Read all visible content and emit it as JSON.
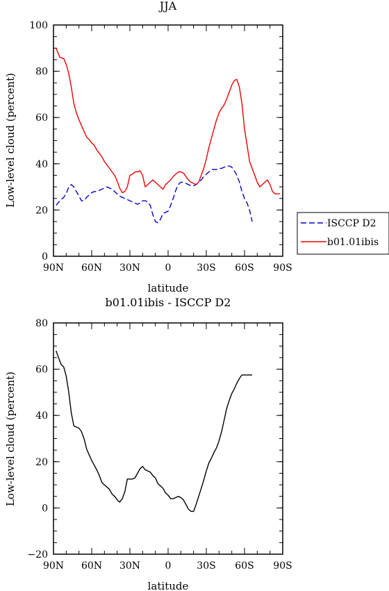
{
  "chart_data": [
    {
      "type": "line",
      "title": "JJA",
      "xlabel": "latitude",
      "ylabel": "Low-level cloud (percent)",
      "xlim": [
        90,
        -90
      ],
      "ylim": [
        0,
        100
      ],
      "xticks": [
        "90N",
        "60N",
        "30N",
        "0",
        "30S",
        "60S",
        "90S"
      ],
      "yticks": [
        "0",
        "20",
        "40",
        "60",
        "80",
        "100"
      ],
      "legend_position": "right",
      "series": [
        {
          "name": "ISCCP D2",
          "color": "#0000cc",
          "dash": true,
          "x": [
            88,
            85,
            82,
            80,
            78,
            76,
            74,
            72,
            70,
            68,
            66,
            64,
            62,
            60,
            58,
            56,
            54,
            52,
            50,
            48,
            46,
            44,
            42,
            40,
            38,
            36,
            34,
            32,
            30,
            28,
            26,
            24,
            22,
            20,
            18,
            16,
            14,
            12,
            10,
            8,
            6,
            4,
            2,
            0,
            -2,
            -4,
            -6,
            -8,
            -10,
            -12,
            -14,
            -16,
            -18,
            -20,
            -22,
            -24,
            -26,
            -28,
            -30,
            -32,
            -34,
            -36,
            -38,
            -40,
            -42,
            -44,
            -46,
            -48,
            -50,
            -52,
            -54,
            -56,
            -58,
            -60,
            -62,
            -64,
            -66
          ],
          "y": [
            22,
            24,
            25.5,
            27,
            30,
            31,
            30,
            28,
            26,
            24,
            24,
            25.5,
            26.5,
            27.5,
            28,
            28,
            28.5,
            29,
            29.5,
            30,
            29.5,
            29,
            28,
            27,
            26,
            25.5,
            25,
            24.5,
            24,
            23.5,
            23,
            22.5,
            23,
            24,
            24,
            23.5,
            22,
            18,
            15,
            14.5,
            16,
            18.5,
            19,
            19.5,
            22,
            25,
            28.5,
            31,
            32,
            32,
            31.5,
            31,
            30.5,
            30.5,
            31,
            32,
            33,
            34.5,
            35.5,
            36.5,
            37.5,
            37.5,
            37.5,
            38,
            38,
            38.5,
            39,
            39,
            38.5,
            37,
            35,
            32,
            28,
            25,
            23,
            20,
            15
          ]
        },
        {
          "name": "b01.01ibis",
          "color": "#ee0000",
          "dash": false,
          "x": [
            88,
            85,
            82,
            80,
            78,
            76,
            74,
            72,
            70,
            68,
            66,
            64,
            62,
            60,
            58,
            56,
            54,
            52,
            50,
            48,
            46,
            44,
            42,
            40,
            38,
            36,
            34,
            32,
            30,
            28,
            26,
            24,
            22,
            20,
            18,
            16,
            14,
            12,
            10,
            8,
            6,
            4,
            2,
            0,
            -2,
            -4,
            -6,
            -8,
            -10,
            -12,
            -14,
            -16,
            -18,
            -20,
            -22,
            -24,
            -26,
            -28,
            -30,
            -32,
            -34,
            -36,
            -38,
            -40,
            -42,
            -44,
            -46,
            -48,
            -50,
            -52,
            -54,
            -56,
            -58,
            -60,
            -62,
            -64,
            -66,
            -68,
            -70,
            -72,
            -74,
            -76,
            -78,
            -80,
            -82,
            -84,
            -86,
            -88
          ],
          "y": [
            90,
            86,
            85.5,
            83,
            79,
            73,
            66,
            62,
            59,
            56.5,
            54,
            51.5,
            50.5,
            49,
            48,
            46,
            44.5,
            43,
            41,
            39.5,
            38,
            36.5,
            35,
            32.5,
            29.5,
            27.5,
            28,
            30,
            35,
            35.5,
            36.5,
            36.5,
            37,
            35,
            30,
            31,
            32,
            33,
            32,
            31,
            30,
            29,
            31,
            32,
            33,
            34.5,
            35.5,
            36.5,
            36.5,
            36,
            34.5,
            33,
            32,
            31.5,
            31,
            32,
            35,
            38,
            42,
            47,
            51,
            55,
            59,
            62,
            64,
            65.5,
            68,
            71,
            74,
            76,
            76.5,
            73,
            66,
            55,
            48,
            41,
            38,
            35,
            32,
            30,
            31,
            32,
            33,
            31,
            28,
            27,
            27,
            27
          ]
        }
      ]
    },
    {
      "type": "line",
      "title": "b01.01ibis - ISCCP D2",
      "xlabel": "latitude",
      "ylabel": "Low-level cloud (percent)",
      "xlim": [
        90,
        -90
      ],
      "ylim": [
        -20,
        80
      ],
      "xticks": [
        "90N",
        "60N",
        "30N",
        "0",
        "30S",
        "60S",
        "90S"
      ],
      "yticks": [
        "−20",
        "0",
        "20",
        "40",
        "60",
        "80"
      ],
      "series": [
        {
          "color": "#000000",
          "dash": false,
          "x": [
            88,
            86,
            84,
            82,
            80,
            78,
            76,
            74,
            72,
            70,
            68,
            66,
            64,
            62,
            60,
            58,
            56,
            54,
            52,
            50,
            48,
            46,
            44,
            42,
            40,
            38,
            36,
            34,
            32,
            30,
            28,
            26,
            24,
            22,
            20,
            18,
            16,
            14,
            12,
            10,
            8,
            6,
            4,
            2,
            0,
            -2,
            -4,
            -6,
            -8,
            -10,
            -12,
            -14,
            -16,
            -18,
            -20,
            -22,
            -24,
            -26,
            -28,
            -30,
            -32,
            -34,
            -36,
            -38,
            -40,
            -42,
            -44,
            -46,
            -48,
            -50,
            -52,
            -54,
            -56,
            -58,
            -60,
            -62,
            -64,
            -66
          ],
          "y": [
            68,
            65,
            62,
            61,
            57,
            50,
            41,
            35.5,
            35,
            34.5,
            33,
            30,
            25.5,
            23,
            20.5,
            18.5,
            16.5,
            14,
            11,
            10,
            9,
            8,
            6,
            5,
            3.5,
            2.5,
            4,
            7,
            12.5,
            12.5,
            12.5,
            13,
            15,
            17,
            18,
            16.5,
            16,
            15.5,
            14,
            13,
            10.5,
            9.5,
            8.5,
            6.5,
            5.5,
            4,
            4,
            4.5,
            5,
            4.5,
            3.5,
            1.5,
            -0.5,
            -1.5,
            -1.5,
            1.5,
            5,
            8.5,
            12,
            16,
            19.5,
            21.5,
            24,
            26,
            29,
            33,
            38,
            43,
            46.5,
            49.5,
            51.5,
            54,
            56,
            57.5,
            57.5,
            57.5,
            57.5,
            57.5
          ]
        }
      ]
    }
  ]
}
